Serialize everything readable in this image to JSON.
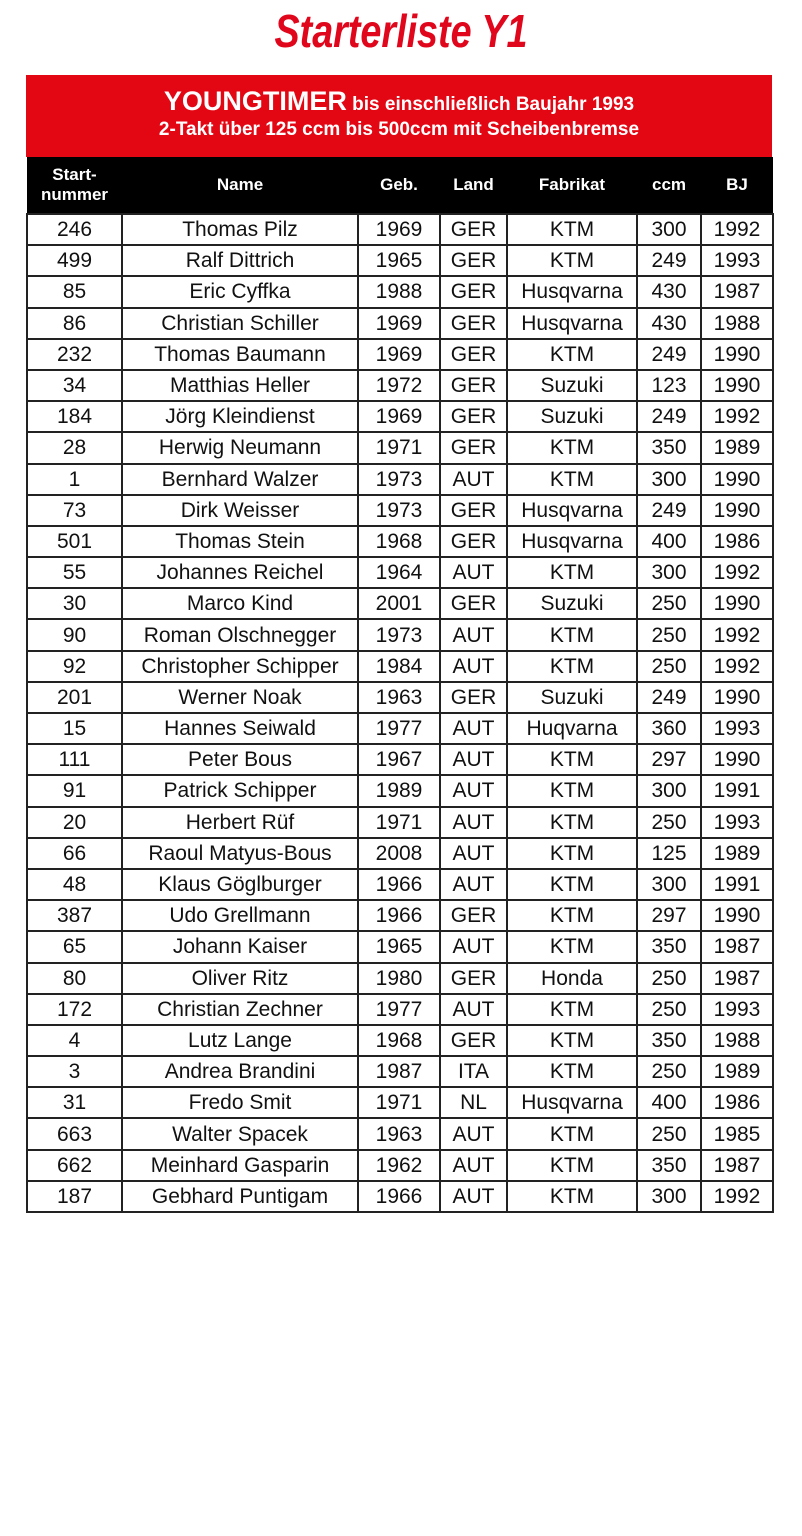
{
  "title": "Starterliste Y1",
  "banner": {
    "class_name": "YOUNGTIMER",
    "class_suffix": "bis einschließlich Baujahr 1993",
    "subtitle": "2-Takt über 125 ccm bis 500ccm mit Scheibenbremse"
  },
  "colors": {
    "accent": "#e30613",
    "header": "#000000"
  },
  "columns": [
    "Start-nummer",
    "Name",
    "Geb.",
    "Land",
    "Fabrikat",
    "ccm",
    "BJ"
  ],
  "rows": [
    [
      "246",
      "Thomas Pilz",
      "1969",
      "GER",
      "KTM",
      "300",
      "1992"
    ],
    [
      "499",
      "Ralf Dittrich",
      "1965",
      "GER",
      "KTM",
      "249",
      "1993"
    ],
    [
      "85",
      "Eric Cyffka",
      "1988",
      "GER",
      "Husqvarna",
      "430",
      "1987"
    ],
    [
      "86",
      "Christian Schiller",
      "1969",
      "GER",
      "Husqvarna",
      "430",
      "1988"
    ],
    [
      "232",
      "Thomas Baumann",
      "1969",
      "GER",
      "KTM",
      "249",
      "1990"
    ],
    [
      "34",
      "Matthias Heller",
      "1972",
      "GER",
      "Suzuki",
      "123",
      "1990"
    ],
    [
      "184",
      "Jörg Kleindienst",
      "1969",
      "GER",
      "Suzuki",
      "249",
      "1992"
    ],
    [
      "28",
      "Herwig Neumann",
      "1971",
      "GER",
      "KTM",
      "350",
      "1989"
    ],
    [
      "1",
      "Bernhard Walzer",
      "1973",
      "AUT",
      "KTM",
      "300",
      "1990"
    ],
    [
      "73",
      "Dirk Weisser",
      "1973",
      "GER",
      "Husqvarna",
      "249",
      "1990"
    ],
    [
      "501",
      "Thomas Stein",
      "1968",
      "GER",
      "Husqvarna",
      "400",
      "1986"
    ],
    [
      "55",
      "Johannes Reichel",
      "1964",
      "AUT",
      "KTM",
      "300",
      "1992"
    ],
    [
      "30",
      "Marco Kind",
      "2001",
      "GER",
      "Suzuki",
      "250",
      "1990"
    ],
    [
      "90",
      "Roman Olschnegger",
      "1973",
      "AUT",
      "KTM",
      "250",
      "1992"
    ],
    [
      "92",
      "Christopher Schipper",
      "1984",
      "AUT",
      "KTM",
      "250",
      "1992"
    ],
    [
      "201",
      "Werner Noak",
      "1963",
      "GER",
      "Suzuki",
      "249",
      "1990"
    ],
    [
      "15",
      "Hannes Seiwald",
      "1977",
      "AUT",
      "Huqvarna",
      "360",
      "1993"
    ],
    [
      "111",
      "Peter Bous",
      "1967",
      "AUT",
      "KTM",
      "297",
      "1990"
    ],
    [
      "91",
      "Patrick Schipper",
      "1989",
      "AUT",
      "KTM",
      "300",
      "1991"
    ],
    [
      "20",
      "Herbert Rüf",
      "1971",
      "AUT",
      "KTM",
      "250",
      "1993"
    ],
    [
      "66",
      "Raoul Matyus-Bous",
      "2008",
      "AUT",
      "KTM",
      "125",
      "1989"
    ],
    [
      "48",
      "Klaus Göglburger",
      "1966",
      "AUT",
      "KTM",
      "300",
      "1991"
    ],
    [
      "387",
      "Udo Grellmann",
      "1966",
      "GER",
      "KTM",
      "297",
      "1990"
    ],
    [
      "65",
      "Johann Kaiser",
      "1965",
      "AUT",
      "KTM",
      "350",
      "1987"
    ],
    [
      "80",
      "Oliver Ritz",
      "1980",
      "GER",
      "Honda",
      "250",
      "1987"
    ],
    [
      "172",
      "Christian Zechner",
      "1977",
      "AUT",
      "KTM",
      "250",
      "1993"
    ],
    [
      "4",
      "Lutz Lange",
      "1968",
      "GER",
      "KTM",
      "350",
      "1988"
    ],
    [
      "3",
      "Andrea Brandini",
      "1987",
      "ITA",
      "KTM",
      "250",
      "1989"
    ],
    [
      "31",
      "Fredo Smit",
      "1971",
      "NL",
      "Husqvarna",
      "400",
      "1986"
    ],
    [
      "663",
      "Walter Spacek",
      "1963",
      "AUT",
      "KTM",
      "250",
      "1985"
    ],
    [
      "662",
      "Meinhard Gasparin",
      "1962",
      "AUT",
      "KTM",
      "350",
      "1987"
    ],
    [
      "187",
      "Gebhard Puntigam",
      "1966",
      "AUT",
      "KTM",
      "300",
      "1992"
    ]
  ]
}
